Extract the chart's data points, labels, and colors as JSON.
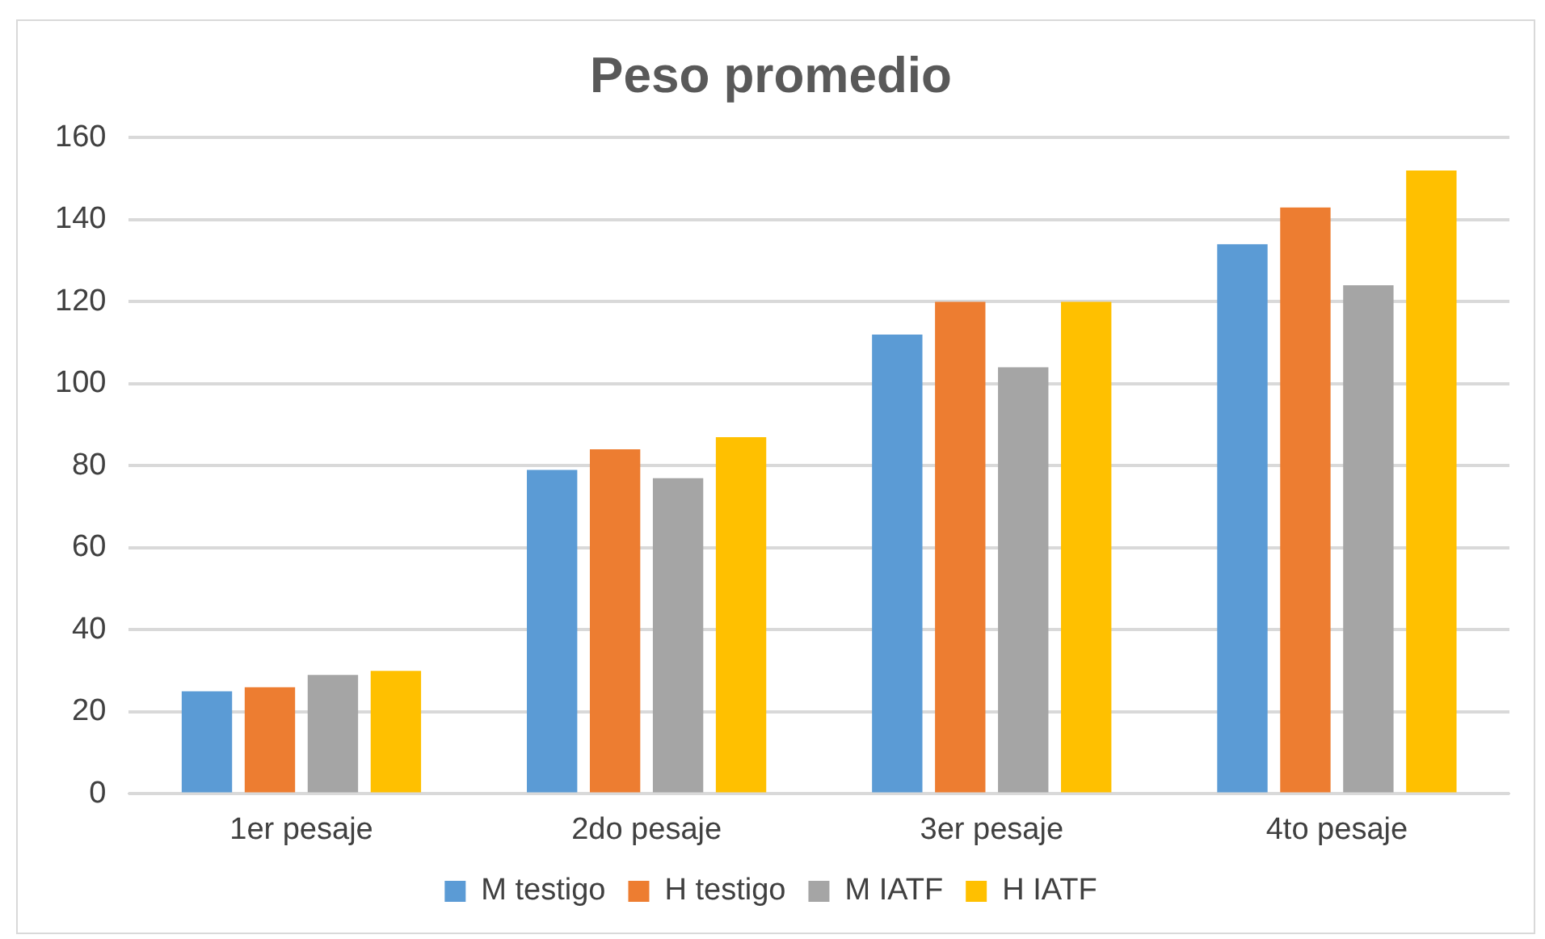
{
  "chart_data": {
    "type": "bar",
    "title": "Peso promedio",
    "categories": [
      "1er pesaje",
      "2do pesaje",
      "3er pesaje",
      "4to pesaje"
    ],
    "series": [
      {
        "name": "M testigo",
        "color": "#5b9bd5",
        "values": [
          25,
          79,
          112,
          134
        ]
      },
      {
        "name": "H testigo",
        "color": "#ed7d31",
        "values": [
          26,
          84,
          120,
          143
        ]
      },
      {
        "name": "M IATF",
        "color": "#a5a5a5",
        "values": [
          29,
          77,
          104,
          124
        ]
      },
      {
        "name": "H IATF",
        "color": "#ffc000",
        "values": [
          30,
          87,
          120,
          152
        ]
      }
    ],
    "ylim": [
      0,
      160
    ],
    "yticks": [
      0,
      20,
      40,
      60,
      80,
      100,
      120,
      140,
      160
    ],
    "grid": "y",
    "legend": "bottom"
  }
}
